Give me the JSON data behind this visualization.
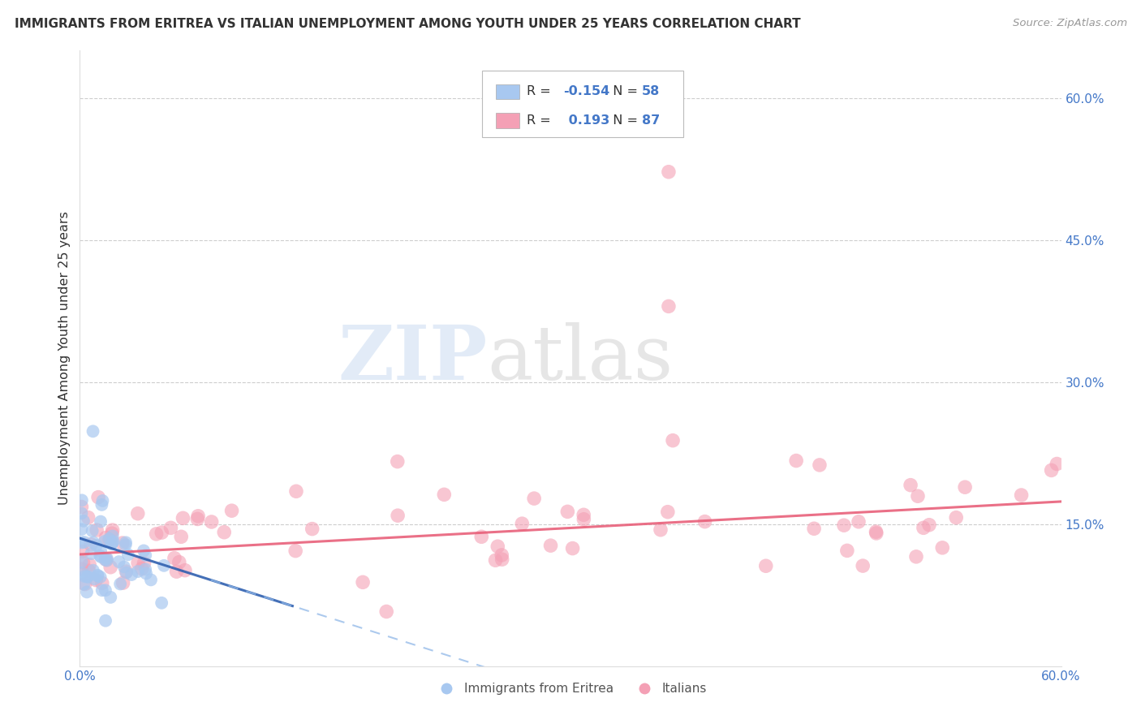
{
  "title": "IMMIGRANTS FROM ERITREA VS ITALIAN UNEMPLOYMENT AMONG YOUTH UNDER 25 YEARS CORRELATION CHART",
  "source": "Source: ZipAtlas.com",
  "ylabel": "Unemployment Among Youth under 25 years",
  "xlim": [
    0.0,
    0.6
  ],
  "ylim": [
    0.0,
    0.65
  ],
  "x_ticks": [
    0.0,
    0.1,
    0.2,
    0.3,
    0.4,
    0.5,
    0.6
  ],
  "x_tick_labels": [
    "0.0%",
    "",
    "",
    "",
    "",
    "",
    "60.0%"
  ],
  "y_ticks_right": [
    0.15,
    0.3,
    0.45,
    0.6
  ],
  "y_tick_labels_right": [
    "15.0%",
    "30.0%",
    "45.0%",
    "60.0%"
  ],
  "color_blue": "#A8C8F0",
  "color_pink": "#F4A0B5",
  "trend_color_blue_solid": "#3060B0",
  "trend_color_blue_dash": "#90B8E8",
  "trend_color_pink": "#E8607A",
  "background_color": "#FFFFFF",
  "grid_color": "#C8C8C8",
  "legend_label1": "Immigrants from Eritrea",
  "legend_label2": "Italians",
  "r1": "-0.154",
  "n1": "58",
  "r2": "0.193",
  "n2": "87",
  "text_color_dark": "#333333",
  "text_color_blue": "#4478C8",
  "source_color": "#999999"
}
